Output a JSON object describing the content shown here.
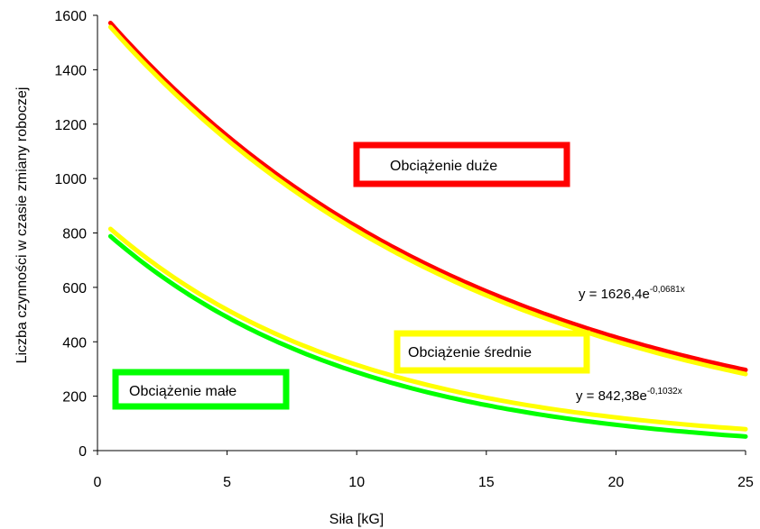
{
  "chart_data": {
    "type": "line",
    "title": "",
    "xlabel": "Siła [kG]",
    "ylabel": "Liczba czynności w czasie zmiany roboczej",
    "xlim": [
      0,
      25
    ],
    "ylim": [
      0,
      1600
    ],
    "xticks": [
      0,
      5,
      10,
      15,
      20,
      25
    ],
    "yticks": [
      0,
      200,
      400,
      600,
      800,
      1000,
      1200,
      1400,
      1600
    ],
    "grid": false,
    "x_range": [
      0.5,
      25
    ],
    "series": [
      {
        "name": "Obciążenie duże",
        "color": "#ff0000",
        "model": "exp",
        "a": 1626.4,
        "b": -0.0681,
        "offset": 0
      },
      {
        "name": "Obciążenie średnie (trend 1)",
        "color": "#ffff00",
        "model": "exp",
        "a": 1626.4,
        "b": -0.0681,
        "offset": -15
      },
      {
        "name": "Obciążenie średnie (trend 2)",
        "color": "#ffff00",
        "model": "exp",
        "a": 842.38,
        "b": -0.1032,
        "offset": 15
      },
      {
        "name": "Obciążenie małe",
        "color": "#00ff00",
        "model": "exp",
        "a": 842.38,
        "b": -0.1032,
        "offset": -12
      }
    ],
    "annotations": {
      "eq1_base": "y = 1626,4e",
      "eq1_exp": "-0,0681x",
      "eq2_base": "y = 842,38e",
      "eq2_exp": "-0,1032x"
    },
    "legend_boxes": [
      {
        "label": "Obciążenie duże",
        "color": "#ff0000"
      },
      {
        "label": "Obciążenie średnie",
        "color": "#ffff00"
      },
      {
        "label": "Obciążenie małe",
        "color": "#00ff00"
      }
    ]
  }
}
